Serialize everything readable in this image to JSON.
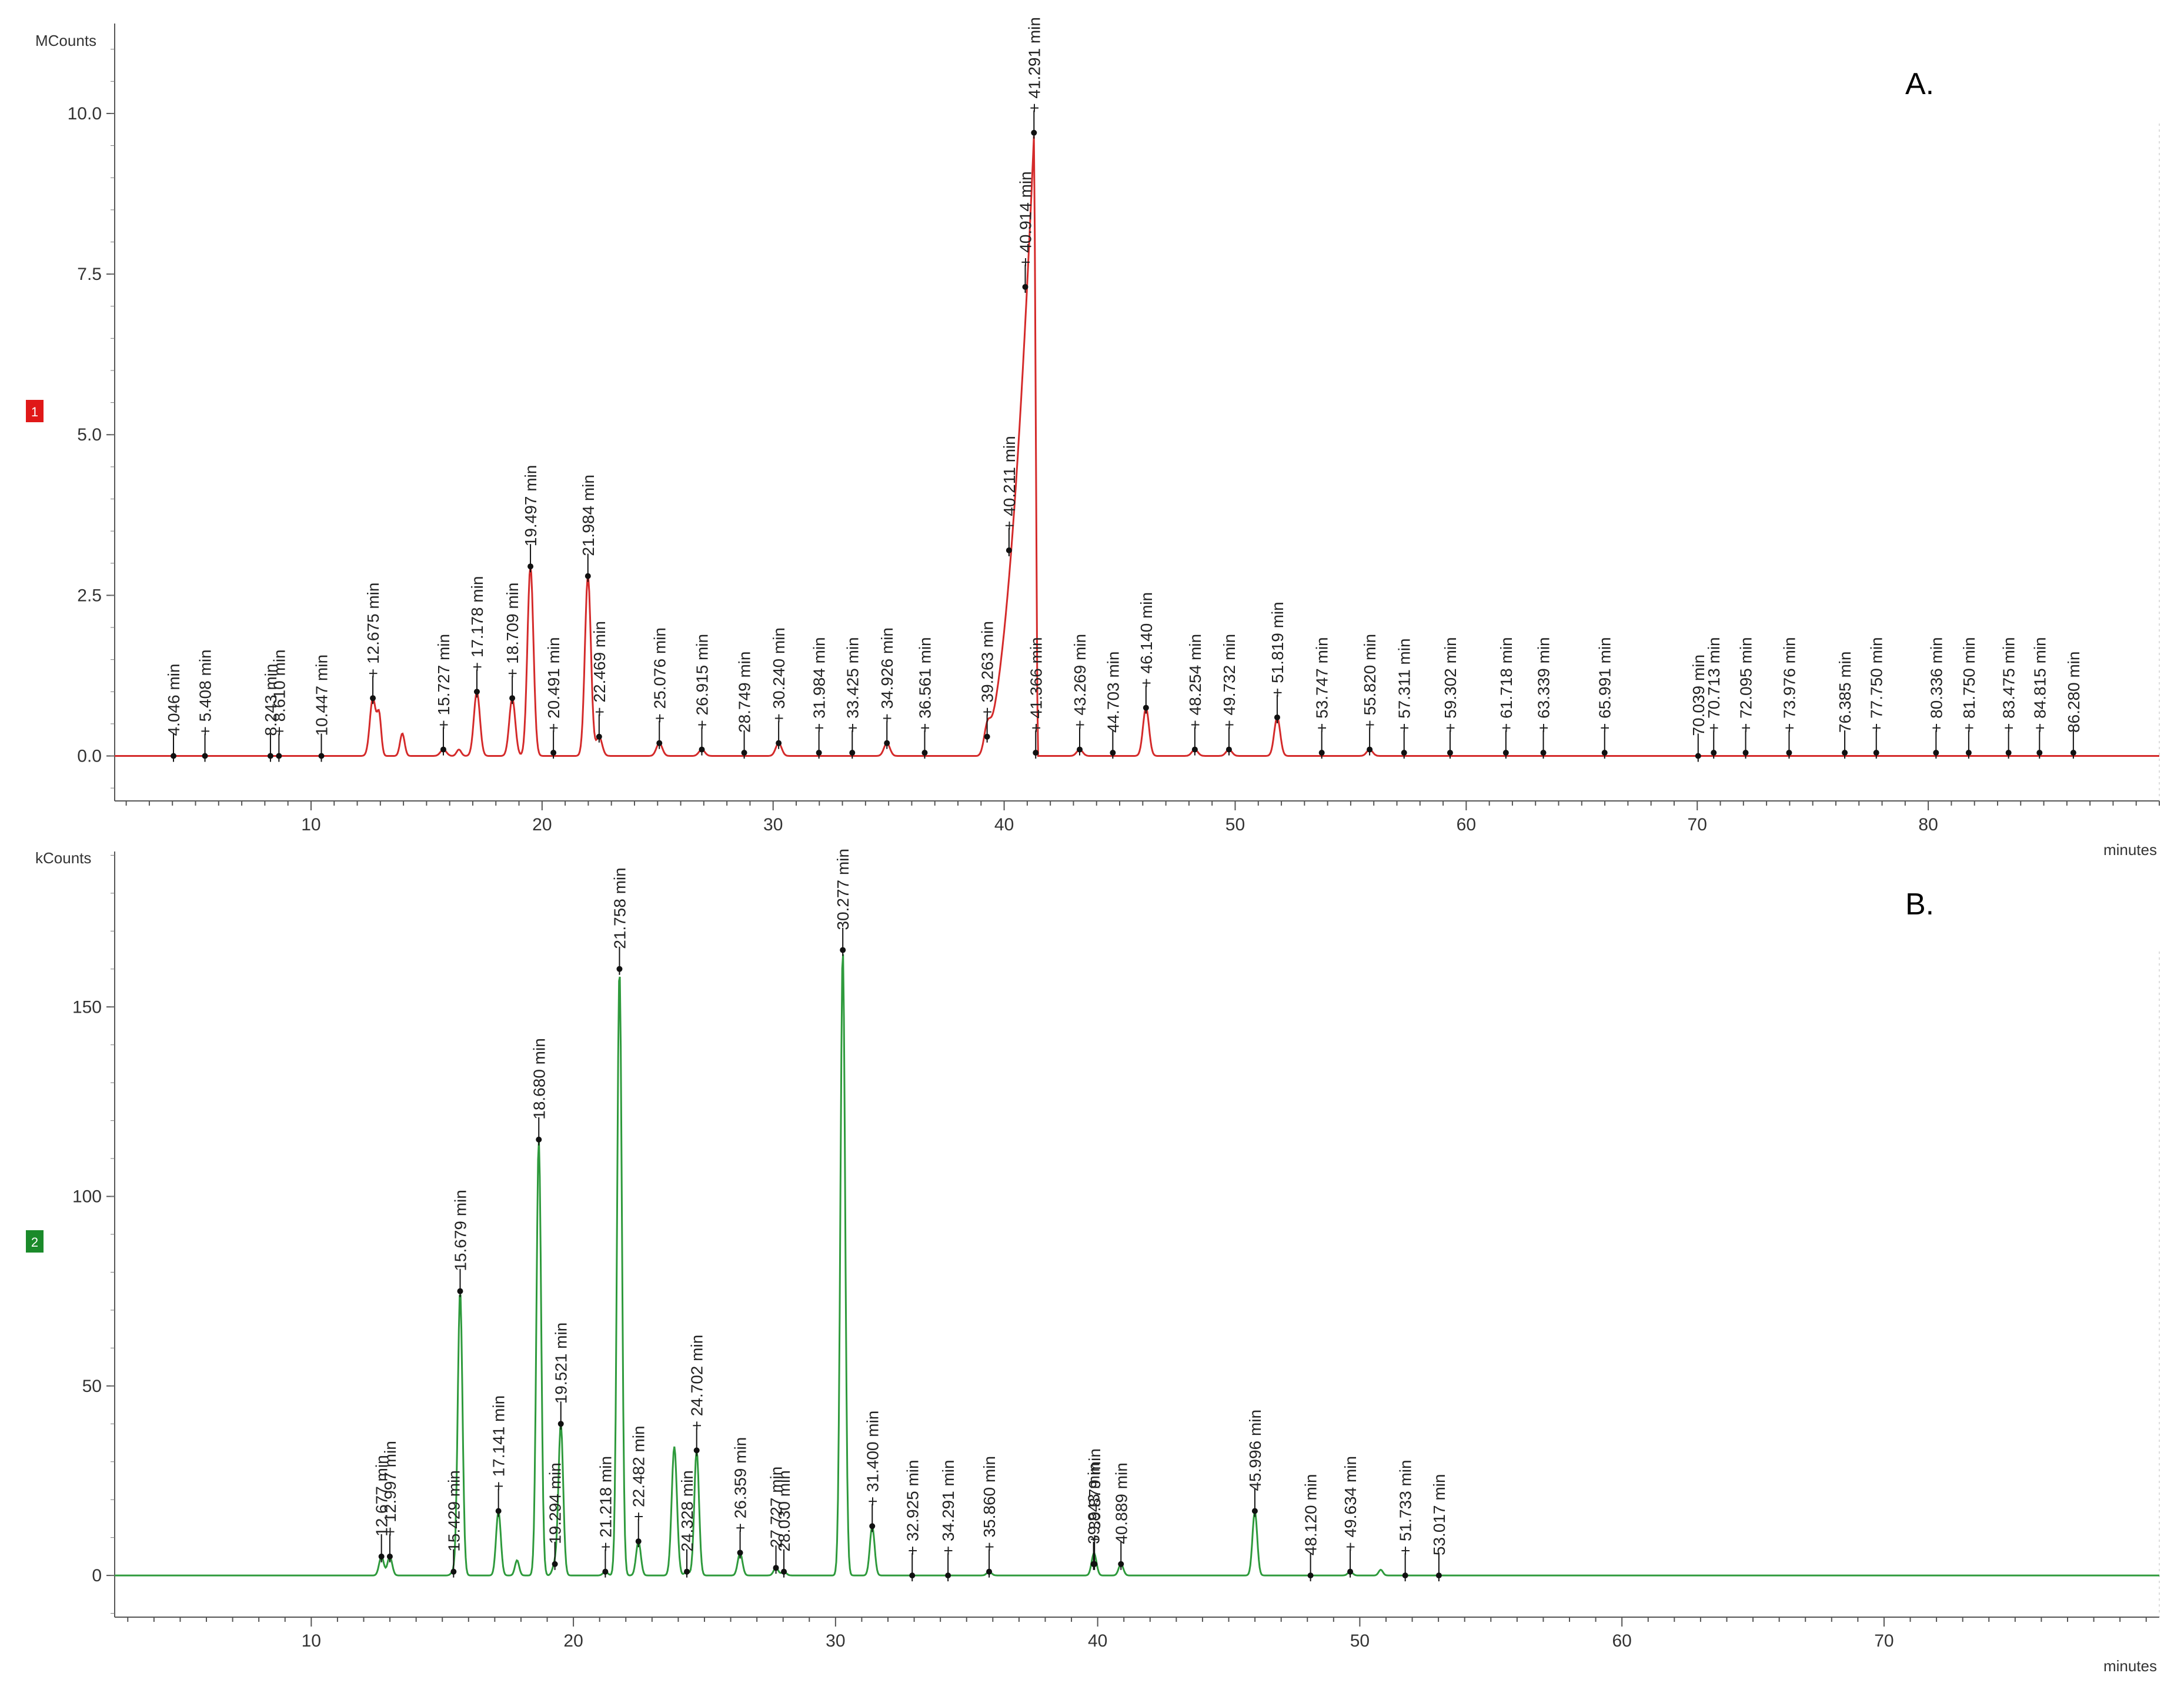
{
  "chart_data": [
    {
      "type": "line",
      "panel_label": "A.",
      "trace_badge": "1",
      "color": "#d42a2a",
      "badge_color": "#e01818",
      "y_unit": "MCounts",
      "x_unit": "minutes",
      "xlim": [
        1.5,
        90
      ],
      "ylim": [
        -0.7,
        11.4
      ],
      "x_ticks": [
        10,
        20,
        30,
        40,
        50,
        60,
        70,
        80
      ],
      "x_tick_labels": [
        "10",
        "20",
        "30",
        "40",
        "50",
        "60",
        "70",
        "80"
      ],
      "y_ticks": [
        0,
        2.5,
        5,
        7.5,
        10
      ],
      "y_tick_labels": [
        "0.0",
        "2.5",
        "5.0",
        "7.5",
        "10.0"
      ],
      "peaks": [
        {
          "t": 4.046,
          "h": 0.0,
          "label": "4.046 min"
        },
        {
          "t": 5.408,
          "h": 0.0,
          "label": "+ 5.408 min"
        },
        {
          "t": 8.243,
          "h": 0.0,
          "label": "8.243 min"
        },
        {
          "t": 8.61,
          "h": 0.0,
          "label": "+ 8.610 min"
        },
        {
          "t": 10.447,
          "h": 0.0,
          "label": "10.447 min"
        },
        {
          "t": 12.675,
          "h": 0.9,
          "label": "+ 12.675 min"
        },
        {
          "t": 15.727,
          "h": 0.1,
          "label": "+ 15.727 min"
        },
        {
          "t": 17.178,
          "h": 1.0,
          "label": "+ 17.178 min"
        },
        {
          "t": 18.709,
          "h": 0.9,
          "label": "+ 18.709 min"
        },
        {
          "t": 19.497,
          "h": 2.95,
          "label": "19.497 min"
        },
        {
          "t": 20.491,
          "h": 0.05,
          "label": "+ 20.491 min"
        },
        {
          "t": 21.984,
          "h": 2.8,
          "label": "21.984 min"
        },
        {
          "t": 22.469,
          "h": 0.3,
          "label": "+ 22.469 min"
        },
        {
          "t": 25.076,
          "h": 0.2,
          "label": "+ 25.076 min"
        },
        {
          "t": 26.915,
          "h": 0.1,
          "label": "+ 26.915 min"
        },
        {
          "t": 28.749,
          "h": 0.05,
          "label": "28.749 min"
        },
        {
          "t": 30.24,
          "h": 0.2,
          "label": "+ 30.240 min"
        },
        {
          "t": 31.984,
          "h": 0.05,
          "label": "+ 31.984 min"
        },
        {
          "t": 33.425,
          "h": 0.05,
          "label": "+ 33.425 min"
        },
        {
          "t": 34.926,
          "h": 0.2,
          "label": "+ 34.926 min"
        },
        {
          "t": 36.561,
          "h": 0.05,
          "label": "+ 36.561 min"
        },
        {
          "t": 39.263,
          "h": 0.3,
          "label": "+ 39.263 min"
        },
        {
          "t": 40.211,
          "h": 3.2,
          "label": "+ 40.211 min"
        },
        {
          "t": 40.914,
          "h": 7.3,
          "label": "+ 40.914 min"
        },
        {
          "t": 41.291,
          "h": 9.7,
          "label": "+ 41.291 min"
        },
        {
          "t": 41.366,
          "h": 0.05,
          "label": "+ 41.366 min"
        },
        {
          "t": 43.269,
          "h": 0.1,
          "label": "+ 43.269 min"
        },
        {
          "t": 44.703,
          "h": 0.05,
          "label": "44.703 min"
        },
        {
          "t": 46.14,
          "h": 0.75,
          "label": "+ 46.140 min"
        },
        {
          "t": 48.254,
          "h": 0.1,
          "label": "+ 48.254 min"
        },
        {
          "t": 49.732,
          "h": 0.1,
          "label": "+ 49.732 min"
        },
        {
          "t": 51.819,
          "h": 0.6,
          "label": "+ 51.819 min"
        },
        {
          "t": 53.747,
          "h": 0.05,
          "label": "+ 53.747 min"
        },
        {
          "t": 55.82,
          "h": 0.1,
          "label": "+ 55.820 min"
        },
        {
          "t": 57.311,
          "h": 0.05,
          "label": "+ 57.311 min"
        },
        {
          "t": 59.302,
          "h": 0.05,
          "label": "+ 59.302 min"
        },
        {
          "t": 61.718,
          "h": 0.05,
          "label": "+ 61.718 min"
        },
        {
          "t": 63.339,
          "h": 0.05,
          "label": "+ 63.339 min"
        },
        {
          "t": 65.991,
          "h": 0.05,
          "label": "+ 65.991 min"
        },
        {
          "t": 70.039,
          "h": 0.0,
          "label": "70.039 min"
        },
        {
          "t": 70.713,
          "h": 0.05,
          "label": "+ 70.713 min"
        },
        {
          "t": 72.095,
          "h": 0.05,
          "label": "+ 72.095 min"
        },
        {
          "t": 73.976,
          "h": 0.05,
          "label": "+ 73.976 min"
        },
        {
          "t": 76.385,
          "h": 0.05,
          "label": "76.385 min"
        },
        {
          "t": 77.75,
          "h": 0.05,
          "label": "+ 77.750 min"
        },
        {
          "t": 80.336,
          "h": 0.05,
          "label": "+ 80.336 min"
        },
        {
          "t": 81.75,
          "h": 0.05,
          "label": "+ 81.750 min"
        },
        {
          "t": 83.475,
          "h": 0.05,
          "label": "+ 83.475 min"
        },
        {
          "t": 84.815,
          "h": 0.05,
          "label": "+ 84.815 min"
        },
        {
          "t": 86.28,
          "h": 0.05,
          "label": "86.280 min"
        }
      ]
    },
    {
      "type": "line",
      "panel_label": "B.",
      "trace_badge": "2",
      "color": "#2e9a3c",
      "badge_color": "#1a8a2a",
      "y_unit": "kCounts",
      "x_unit": "minutes",
      "xlim": [
        2.5,
        80.5
      ],
      "ylim": [
        -11,
        191
      ],
      "x_ticks": [
        10,
        20,
        30,
        40,
        50,
        60,
        70
      ],
      "x_tick_labels": [
        "10",
        "20",
        "30",
        "40",
        "50",
        "60",
        "70"
      ],
      "y_ticks": [
        0,
        50,
        100,
        150
      ],
      "y_tick_labels": [
        "0",
        "50",
        "100",
        "150"
      ],
      "peaks": [
        {
          "t": 12.677,
          "h": 5,
          "label": "12.677 min"
        },
        {
          "t": 12.997,
          "h": 5,
          "label": "+ 12.997 min"
        },
        {
          "t": 15.429,
          "h": 1,
          "label": "15.429 min"
        },
        {
          "t": 15.679,
          "h": 75,
          "label": "15.679 min"
        },
        {
          "t": 17.141,
          "h": 17,
          "label": "+ 17.141 min"
        },
        {
          "t": 18.68,
          "h": 115,
          "label": "18.680 min"
        },
        {
          "t": 19.294,
          "h": 3,
          "label": "19.294 min"
        },
        {
          "t": 19.521,
          "h": 40,
          "label": "19.521 min"
        },
        {
          "t": 21.218,
          "h": 1,
          "label": "+ 21.218 min"
        },
        {
          "t": 21.758,
          "h": 160,
          "label": "21.758 min"
        },
        {
          "t": 22.482,
          "h": 9,
          "label": "+ 22.482 min"
        },
        {
          "t": 24.328,
          "h": 1,
          "label": "24.328 min"
        },
        {
          "t": 24.702,
          "h": 33,
          "label": "+ 24.702 min"
        },
        {
          "t": 26.359,
          "h": 6,
          "label": "+ 26.359 min"
        },
        {
          "t": 27.727,
          "h": 2,
          "label": "27.727 min"
        },
        {
          "t": 28.03,
          "h": 1,
          "label": "28.030 min"
        },
        {
          "t": 30.277,
          "h": 165,
          "label": "30.277 min"
        },
        {
          "t": 31.4,
          "h": 13,
          "label": "+ 31.400 min"
        },
        {
          "t": 32.925,
          "h": 0,
          "label": "+ 32.925 min"
        },
        {
          "t": 34.291,
          "h": 0,
          "label": "+ 34.291 min"
        },
        {
          "t": 35.86,
          "h": 1,
          "label": "+ 35.860 min"
        },
        {
          "t": 39.843,
          "h": 3,
          "label": "39.843 min"
        },
        {
          "t": 39.879,
          "h": 3,
          "label": "+ 39.879 min"
        },
        {
          "t": 40.889,
          "h": 3,
          "label": "40.889 min"
        },
        {
          "t": 45.996,
          "h": 17,
          "label": "45.996 min"
        },
        {
          "t": 48.12,
          "h": 0,
          "label": "48.120 min"
        },
        {
          "t": 49.634,
          "h": 1,
          "label": "+ 49.634 min"
        },
        {
          "t": 51.733,
          "h": 0,
          "label": "+ 51.733 min"
        },
        {
          "t": 53.017,
          "h": 0,
          "label": "53.017 min"
        }
      ]
    }
  ]
}
